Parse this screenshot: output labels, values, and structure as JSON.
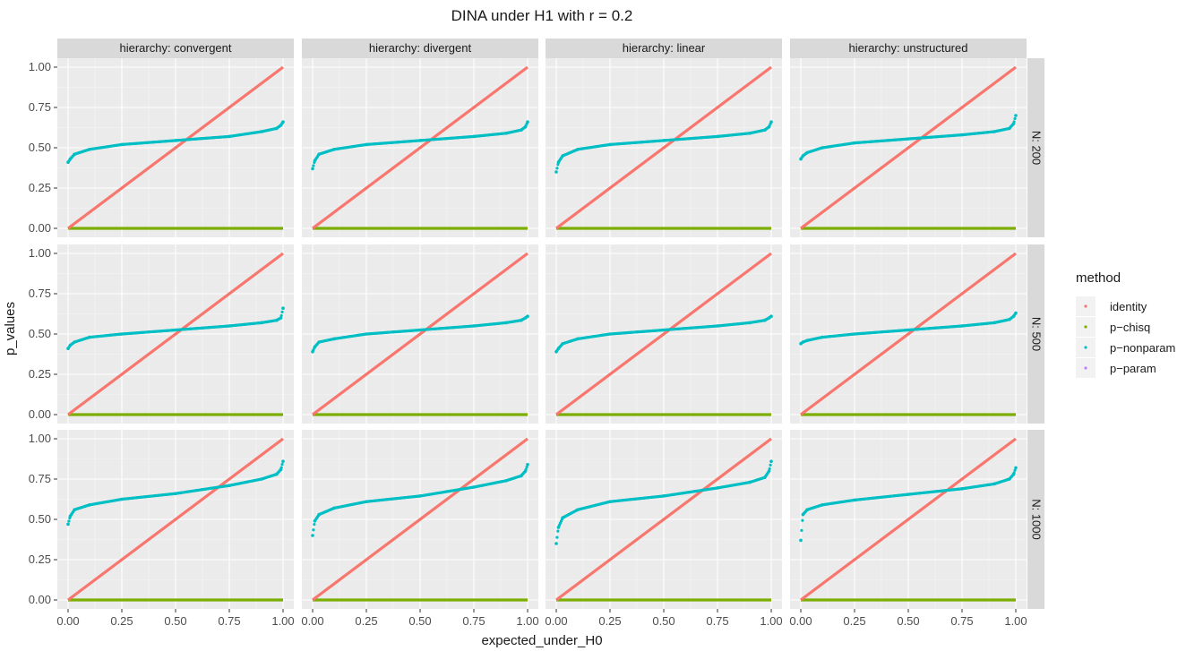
{
  "chart_data": {
    "type": "scatter",
    "title": "DINA under H1 with r = 0.2",
    "xlabel": "expected_under_H0",
    "ylabel": "p_values",
    "xlim": [
      0,
      1
    ],
    "ylim": [
      0,
      1
    ],
    "x_ticks": [
      "0.00",
      "0.25",
      "0.50",
      "0.75",
      "1.00"
    ],
    "y_ticks": [
      "0.00",
      "0.25",
      "0.50",
      "0.75",
      "1.00"
    ],
    "grid": true,
    "legend_position": "right",
    "legend": {
      "title": "method",
      "items": [
        {
          "name": "identity",
          "color": "#F8766D"
        },
        {
          "name": "p−chisq",
          "color": "#7CAE00"
        },
        {
          "name": "p−nonparam",
          "color": "#00BFC4"
        },
        {
          "name": "p−param",
          "color": "#C77CFF"
        }
      ]
    },
    "facet_columns": [
      "hierarchy: convergent",
      "hierarchy: divergent",
      "hierarchy: linear",
      "hierarchy: unstructured"
    ],
    "facet_rows": [
      "N: 200",
      "N: 500",
      "N: 1000"
    ],
    "series_note": "identity line y = x; p-chisq and p-param at 0 across x",
    "panels": [
      {
        "row": 0,
        "col": 0,
        "nonparam": {
          "x": [
            0,
            0.01,
            0.03,
            0.1,
            0.25,
            0.5,
            0.75,
            0.9,
            0.97,
            0.99,
            1.0
          ],
          "y": [
            0.41,
            0.43,
            0.46,
            0.49,
            0.52,
            0.545,
            0.57,
            0.6,
            0.62,
            0.64,
            0.66
          ]
        }
      },
      {
        "row": 0,
        "col": 1,
        "nonparam": {
          "x": [
            0,
            0.01,
            0.03,
            0.1,
            0.25,
            0.5,
            0.75,
            0.9,
            0.97,
            0.99,
            1.0
          ],
          "y": [
            0.37,
            0.42,
            0.46,
            0.49,
            0.52,
            0.545,
            0.57,
            0.59,
            0.61,
            0.63,
            0.66
          ]
        }
      },
      {
        "row": 0,
        "col": 2,
        "nonparam": {
          "x": [
            0,
            0.01,
            0.03,
            0.1,
            0.25,
            0.5,
            0.75,
            0.9,
            0.97,
            0.99,
            1.0
          ],
          "y": [
            0.35,
            0.41,
            0.45,
            0.49,
            0.52,
            0.545,
            0.57,
            0.59,
            0.61,
            0.63,
            0.66
          ]
        }
      },
      {
        "row": 0,
        "col": 3,
        "nonparam": {
          "x": [
            0,
            0.01,
            0.03,
            0.1,
            0.25,
            0.5,
            0.75,
            0.9,
            0.97,
            0.99,
            1.0
          ],
          "y": [
            0.43,
            0.45,
            0.47,
            0.5,
            0.53,
            0.555,
            0.58,
            0.6,
            0.62,
            0.65,
            0.7
          ]
        }
      },
      {
        "row": 1,
        "col": 0,
        "nonparam": {
          "x": [
            0,
            0.01,
            0.03,
            0.1,
            0.25,
            0.5,
            0.75,
            0.9,
            0.97,
            0.99,
            1.0
          ],
          "y": [
            0.41,
            0.43,
            0.45,
            0.48,
            0.5,
            0.525,
            0.55,
            0.57,
            0.585,
            0.6,
            0.66
          ]
        }
      },
      {
        "row": 1,
        "col": 1,
        "nonparam": {
          "x": [
            0,
            0.01,
            0.03,
            0.1,
            0.25,
            0.5,
            0.75,
            0.9,
            0.97,
            0.99,
            1.0
          ],
          "y": [
            0.39,
            0.42,
            0.45,
            0.47,
            0.5,
            0.525,
            0.55,
            0.57,
            0.585,
            0.6,
            0.61
          ]
        }
      },
      {
        "row": 1,
        "col": 2,
        "nonparam": {
          "x": [
            0,
            0.01,
            0.03,
            0.1,
            0.25,
            0.5,
            0.75,
            0.9,
            0.97,
            0.99,
            1.0
          ],
          "y": [
            0.39,
            0.41,
            0.44,
            0.47,
            0.5,
            0.525,
            0.55,
            0.57,
            0.585,
            0.6,
            0.61
          ]
        }
      },
      {
        "row": 1,
        "col": 3,
        "nonparam": {
          "x": [
            0,
            0.01,
            0.03,
            0.1,
            0.25,
            0.5,
            0.75,
            0.9,
            0.97,
            0.99,
            1.0
          ],
          "y": [
            0.44,
            0.45,
            0.46,
            0.48,
            0.5,
            0.525,
            0.55,
            0.57,
            0.59,
            0.61,
            0.63
          ]
        }
      },
      {
        "row": 2,
        "col": 0,
        "nonparam": {
          "x": [
            0,
            0.01,
            0.03,
            0.1,
            0.25,
            0.5,
            0.75,
            0.9,
            0.97,
            0.99,
            1.0
          ],
          "y": [
            0.47,
            0.52,
            0.56,
            0.59,
            0.625,
            0.66,
            0.71,
            0.75,
            0.78,
            0.81,
            0.86
          ]
        }
      },
      {
        "row": 2,
        "col": 1,
        "nonparam": {
          "x": [
            0,
            0.01,
            0.03,
            0.1,
            0.25,
            0.5,
            0.75,
            0.9,
            0.97,
            0.99,
            1.0
          ],
          "y": [
            0.4,
            0.49,
            0.53,
            0.57,
            0.61,
            0.645,
            0.7,
            0.74,
            0.77,
            0.8,
            0.84
          ]
        }
      },
      {
        "row": 2,
        "col": 2,
        "nonparam": {
          "x": [
            0,
            0.01,
            0.03,
            0.1,
            0.25,
            0.5,
            0.75,
            0.9,
            0.97,
            0.99,
            1.0
          ],
          "y": [
            0.35,
            0.45,
            0.51,
            0.56,
            0.61,
            0.645,
            0.695,
            0.73,
            0.76,
            0.8,
            0.86
          ]
        }
      },
      {
        "row": 2,
        "col": 3,
        "nonparam": {
          "x": [
            0,
            0.01,
            0.03,
            0.1,
            0.25,
            0.5,
            0.75,
            0.9,
            0.97,
            0.99,
            1.0
          ],
          "y": [
            0.37,
            0.53,
            0.56,
            0.59,
            0.62,
            0.655,
            0.69,
            0.72,
            0.75,
            0.78,
            0.82
          ]
        }
      }
    ]
  }
}
